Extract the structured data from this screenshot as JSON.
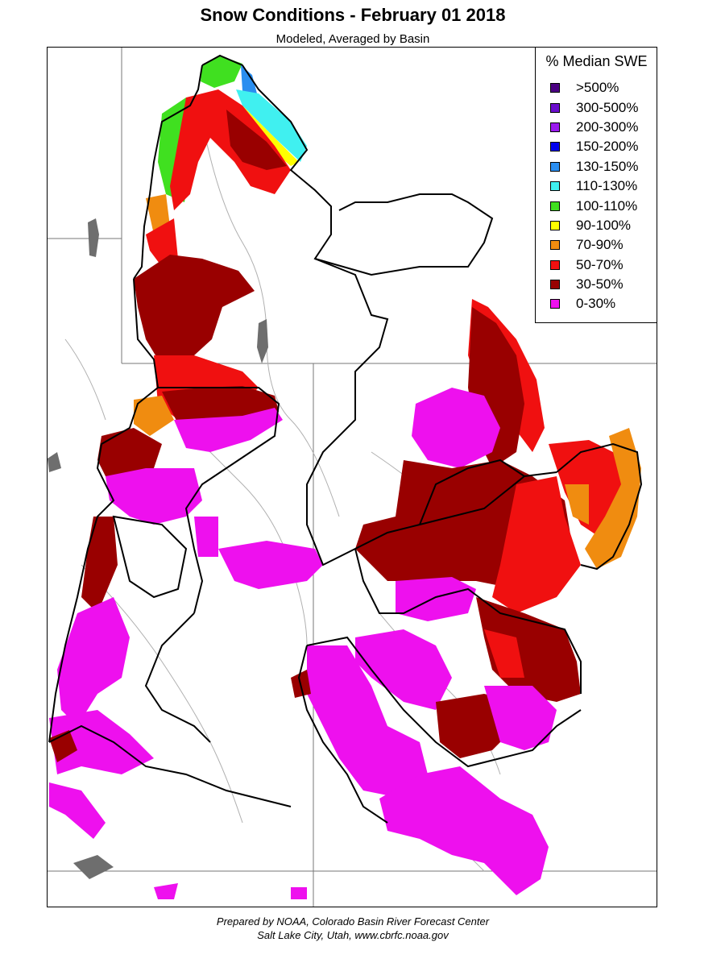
{
  "title": "Snow Conditions - February 01 2018",
  "subtitle": "Modeled, Averaged by Basin",
  "legend": {
    "title": "% Median SWE",
    "items": [
      {
        "label": ">500%",
        "color": "#4b0082"
      },
      {
        "label": "300-500%",
        "color": "#6a0dcc"
      },
      {
        "label": "200-300%",
        "color": "#9a1aee"
      },
      {
        "label": "150-200%",
        "color": "#0000ee"
      },
      {
        "label": "130-150%",
        "color": "#2a8ef0"
      },
      {
        "label": "110-130%",
        "color": "#40f0f0"
      },
      {
        "label": "100-110%",
        "color": "#40e020"
      },
      {
        "label": "90-100%",
        "color": "#ffff00"
      },
      {
        "label": "70-90%",
        "color": "#f08c10"
      },
      {
        "label": "50-70%",
        "color": "#f01010"
      },
      {
        "label": "30-50%",
        "color": "#990000"
      },
      {
        "label": "0-30%",
        "color": "#ee10ee"
      }
    ]
  },
  "credits": {
    "line1": "Prepared by NOAA, Colorado Basin River Forecast Center",
    "line2": "Salt Lake City, Utah, www.cbrfc.noaa.gov"
  }
}
